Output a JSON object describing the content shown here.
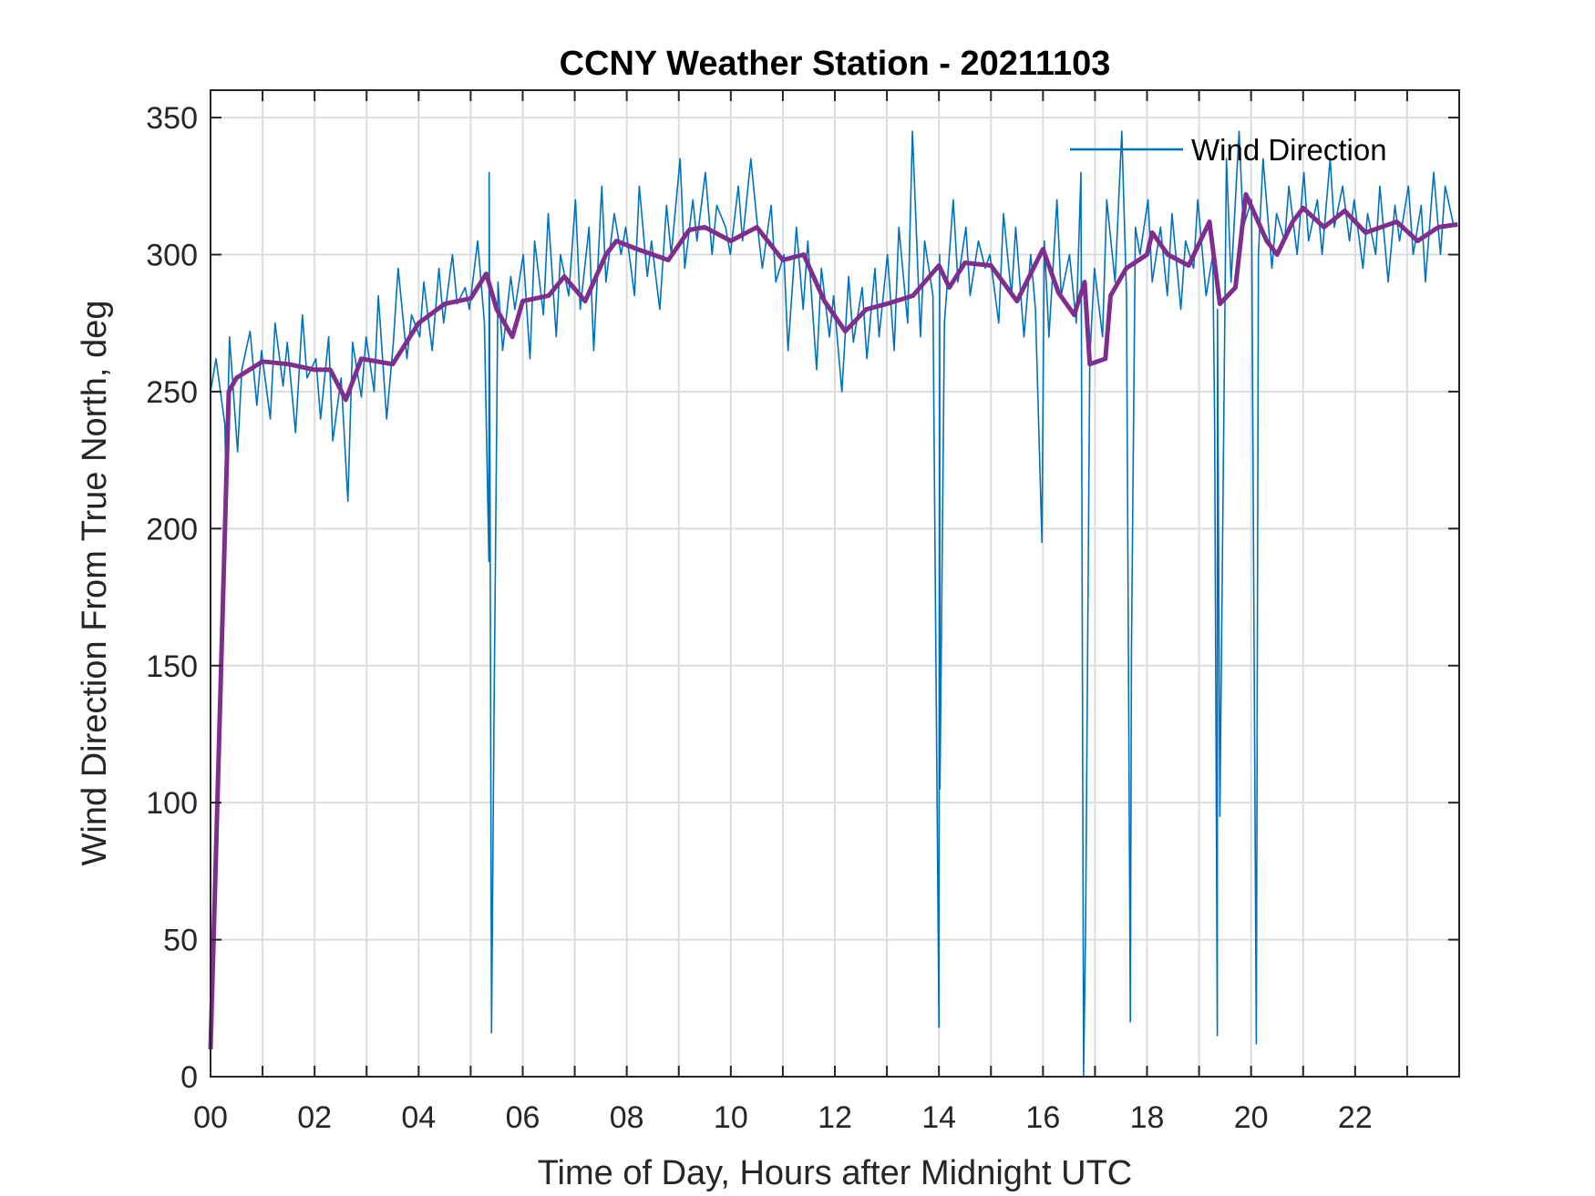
{
  "chart_data": {
    "type": "line",
    "title": "CCNY Weather Station - 20211103",
    "xlabel": "Time of Day, Hours after Midnight UTC",
    "ylabel": "Wind Direction From True North, deg",
    "xlim": [
      0,
      24
    ],
    "ylim": [
      0,
      360
    ],
    "grid": true,
    "legend_placement": "top-right",
    "x_ticks": [
      0,
      2,
      4,
      6,
      8,
      10,
      12,
      14,
      16,
      18,
      20,
      22
    ],
    "x_tick_labels": [
      "00",
      "02",
      "04",
      "06",
      "08",
      "10",
      "12",
      "14",
      "16",
      "18",
      "20",
      "22"
    ],
    "y_ticks": [
      0,
      50,
      100,
      150,
      200,
      250,
      300,
      350
    ],
    "y_tick_labels": [
      "0",
      "50",
      "100",
      "150",
      "200",
      "250",
      "300",
      "350"
    ],
    "series": [
      {
        "name": "Wind Direction",
        "color": "#0072BD",
        "x_step_hours": 0.125,
        "values": [
          250,
          262,
          238,
          270,
          228,
          258,
          272,
          245,
          265,
          240,
          275,
          252,
          268,
          235,
          278,
          255,
          262,
          240,
          270,
          232,
          255,
          210,
          268,
          248,
          270,
          250,
          285,
          240,
          268,
          295,
          262,
          278,
          270,
          290,
          265,
          295,
          275,
          300,
          282,
          288,
          280,
          305,
          275,
          330,
          290,
          265,
          292,
          280,
          300,
          262,
          305,
          278,
          315,
          270,
          300,
          285,
          320,
          280,
          310,
          265,
          325,
          290,
          315,
          300,
          310,
          285,
          325,
          292,
          305,
          280,
          318,
          300,
          335,
          295,
          320,
          305,
          330,
          300,
          318,
          310,
          300,
          325,
          305,
          335,
          310,
          295,
          318,
          290,
          300,
          265,
          310,
          280,
          305,
          258,
          295,
          270,
          285,
          250,
          292,
          268,
          288,
          262,
          295,
          270,
          300,
          265,
          310,
          275,
          345,
          270,
          305,
          285,
          300,
          275,
          320,
          290,
          310,
          285,
          305,
          295,
          300,
          275,
          315,
          285,
          310,
          270,
          300,
          280,
          305,
          270,
          320,
          285,
          300,
          275,
          330,
          262,
          295,
          270,
          320,
          290,
          345,
          285,
          310,
          300,
          320,
          290,
          310,
          285,
          315,
          280,
          305,
          295,
          320,
          285,
          300,
          280,
          335,
          290,
          345,
          310,
          320,
          300,
          335,
          295,
          315,
          305,
          325,
          300,
          330,
          305,
          320,
          300,
          335,
          310,
          325,
          305,
          320,
          295,
          315,
          300,
          325,
          290,
          318,
          305,
          325,
          300,
          318,
          290,
          330,
          300,
          325,
          310
        ],
        "spikes": [
          [
            0.3,
            215
          ],
          [
            5.35,
            188
          ],
          [
            5.4,
            16
          ],
          [
            5.45,
            135
          ],
          [
            14.0,
            18
          ],
          [
            14.02,
            105
          ],
          [
            15.98,
            195
          ],
          [
            16.78,
            0
          ],
          [
            16.82,
            55
          ],
          [
            17.68,
            20
          ],
          [
            17.7,
            155
          ],
          [
            19.3,
            238
          ],
          [
            19.35,
            15
          ],
          [
            19.4,
            95
          ],
          [
            20.1,
            12
          ]
        ]
      },
      {
        "color": "#7E2F8E",
        "x": [
          0,
          0.35,
          0.5,
          1,
          1.5,
          2,
          2.3,
          2.6,
          2.9,
          3.5,
          4,
          4.5,
          5,
          5.3,
          5.5,
          5.8,
          6,
          6.5,
          6.8,
          7.2,
          7.6,
          7.8,
          8.2,
          8.8,
          9.2,
          9.5,
          10,
          10.5,
          11,
          11.4,
          11.8,
          12.2,
          12.6,
          13,
          13.5,
          14,
          14.2,
          14.5,
          15,
          15.5,
          16,
          16.3,
          16.6,
          16.8,
          16.9,
          17.2,
          17.3,
          17.6,
          18,
          18.1,
          18.4,
          18.8,
          19.2,
          19.4,
          19.7,
          19.9,
          20.3,
          20.5,
          20.8,
          21,
          21.4,
          21.8,
          22.2,
          22.8,
          23.2,
          23.6,
          23.97
        ],
        "y": [
          10,
          250,
          255,
          261,
          260,
          258,
          258,
          247,
          262,
          260,
          275,
          282,
          284,
          293,
          280,
          270,
          283,
          285,
          292,
          283,
          300,
          305,
          302,
          298,
          309,
          310,
          305,
          310,
          298,
          300,
          283,
          272,
          280,
          282,
          285,
          296,
          288,
          297,
          296,
          283,
          302,
          286,
          278,
          290,
          260,
          262,
          285,
          295,
          300,
          308,
          300,
          296,
          312,
          282,
          288,
          322,
          305,
          300,
          312,
          317,
          310,
          316,
          308,
          312,
          305,
          310,
          311
        ]
      }
    ]
  }
}
